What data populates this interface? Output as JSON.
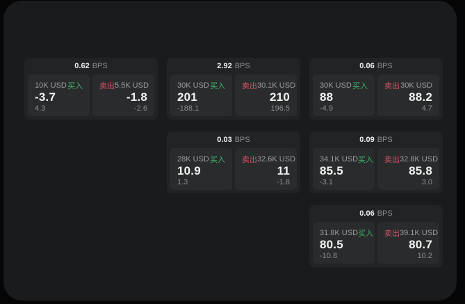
{
  "labels": {
    "buy": "买入",
    "sell": "卖出",
    "bps_unit": "BPS"
  },
  "colors": {
    "buy_green": "#3eb368",
    "sell_red": "#cf5566",
    "price_white": "#f2f2f2",
    "label_gray": "#9c9da0",
    "window_bg": "#1a1b1c",
    "card_bg": "#222324",
    "panel_bg": "#2a2b2c"
  },
  "cards": [
    {
      "bps": "0.62",
      "buy": {
        "amount": "10K USD",
        "price": "-3.7",
        "delta": "4.3"
      },
      "sell": {
        "amount": "5.5K USD",
        "price": "-1.8",
        "delta": "-2.6"
      }
    },
    {
      "bps": "2.92",
      "buy": {
        "amount": "30K USD",
        "price": "201",
        "delta": "-188.1"
      },
      "sell": {
        "amount": "30.1K USD",
        "price": "210",
        "delta": "196.5"
      }
    },
    {
      "bps": "0.06",
      "buy": {
        "amount": "30K USD",
        "price": "88",
        "delta": "-4.9"
      },
      "sell": {
        "amount": "30K USD",
        "price": "88.2",
        "delta": "4.7"
      }
    },
    {
      "bps": "0.03",
      "buy": {
        "amount": "28K USD",
        "price": "10.9",
        "delta": "1.3"
      },
      "sell": {
        "amount": "32.6K USD",
        "price": "11",
        "delta": "-1.8"
      }
    },
    {
      "bps": "0.09",
      "buy": {
        "amount": "34.1K USD",
        "price": "85.5",
        "delta": "-3.1"
      },
      "sell": {
        "amount": "32.8K USD",
        "price": "85.8",
        "delta": "3.0"
      }
    },
    {
      "bps": "0.06",
      "buy": {
        "amount": "31.8K USD",
        "price": "80.5",
        "delta": "-10.8"
      },
      "sell": {
        "amount": "39.1K USD",
        "price": "80.7",
        "delta": "10.2"
      }
    }
  ]
}
